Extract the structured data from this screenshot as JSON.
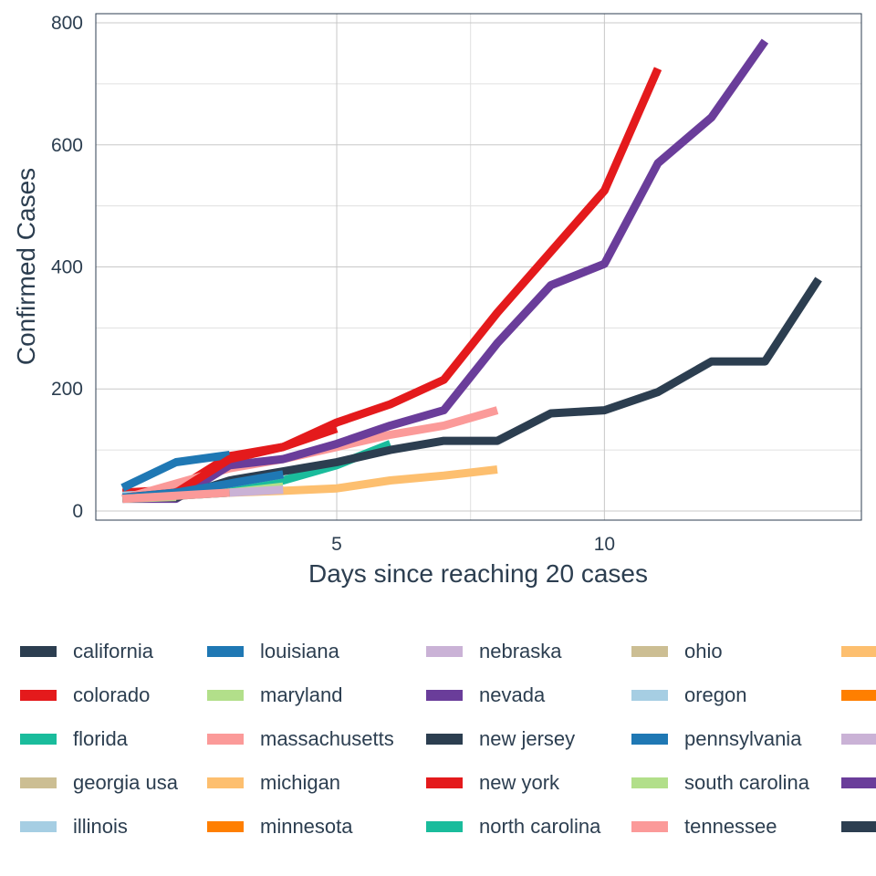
{
  "chart_data": {
    "type": "line",
    "title": "",
    "xlabel": "Days since reaching 20 cases",
    "ylabel": "Confirmed Cases",
    "xlim": [
      0.5,
      14.8
    ],
    "ylim": [
      -15,
      815
    ],
    "xticks": [
      5,
      10
    ],
    "yticks": [
      0,
      200,
      400,
      600,
      800
    ],
    "grid": true,
    "legend_position": "bottom",
    "series": [
      {
        "name": "california",
        "color": "#2c3e50",
        "x": [
          1,
          2
        ],
        "y": [
          28,
          28
        ]
      },
      {
        "name": "colorado",
        "color": "#e41a1c",
        "x": [
          1,
          2,
          3,
          4,
          5
        ],
        "y": [
          30,
          35,
          90,
          105,
          135
        ]
      },
      {
        "name": "florida",
        "color": "#1abc9c",
        "x": [
          1,
          2,
          3,
          4,
          5,
          6
        ],
        "y": [
          21,
          25,
          35,
          50,
          75,
          110
        ]
      },
      {
        "name": "georgia usa",
        "color": "#ccbe93",
        "x": [
          1,
          2,
          3
        ],
        "y": [
          22,
          26,
          30
        ]
      },
      {
        "name": "illinois",
        "color": "#a6cee3",
        "x": [
          1,
          2,
          3,
          4
        ],
        "y": [
          25,
          30,
          45,
          60
        ]
      },
      {
        "name": "louisiana",
        "color": "#1f78b4",
        "x": [
          1,
          2,
          3
        ],
        "y": [
          38,
          80,
          92
        ]
      },
      {
        "name": "maryland",
        "color": "#b2df8a",
        "x": [
          1,
          2,
          3,
          4
        ],
        "y": [
          22,
          26,
          30,
          40
        ]
      },
      {
        "name": "massachusetts",
        "color": "#fb9a99",
        "x": [
          1,
          2,
          3,
          4,
          5,
          6,
          7,
          8
        ],
        "y": [
          20,
          45,
          70,
          85,
          105,
          125,
          140,
          165
        ]
      },
      {
        "name": "michigan",
        "color": "#fdbf6f",
        "x": [
          1,
          2,
          3,
          4,
          5,
          6,
          7,
          8
        ],
        "y": [
          20,
          25,
          30,
          33,
          37,
          50,
          58,
          68
        ]
      },
      {
        "name": "minnesota",
        "color": "#ff7f00",
        "x": [
          1,
          2
        ],
        "y": [
          21,
          25
        ]
      },
      {
        "name": "nebraska",
        "color": "#cab2d6",
        "x": [
          1,
          2,
          3,
          4
        ],
        "y": [
          20,
          25,
          30,
          35
        ]
      },
      {
        "name": "nevada",
        "color": "#6a3d9a",
        "x": [
          1,
          2,
          3,
          4,
          5,
          6,
          7,
          8,
          9,
          10,
          11,
          12,
          13
        ],
        "y": [
          20,
          20,
          75,
          85,
          110,
          140,
          165,
          275,
          370,
          405,
          570,
          645,
          770
        ]
      },
      {
        "name": "new jersey",
        "color": "#2c3e50",
        "x": [
          1,
          2,
          3,
          4,
          5,
          6,
          7,
          8,
          9,
          10,
          11,
          12,
          13,
          14
        ],
        "y": [
          22,
          22,
          50,
          65,
          80,
          100,
          115,
          115,
          160,
          165,
          195,
          245,
          245,
          380
        ]
      },
      {
        "name": "new york",
        "color": "#e41a1c",
        "x": [
          1,
          2,
          3,
          4,
          5,
          6,
          7,
          8,
          9,
          10,
          11
        ],
        "y": [
          22,
          30,
          85,
          105,
          145,
          175,
          215,
          325,
          425,
          525,
          725
        ]
      },
      {
        "name": "north carolina",
        "color": "#1abc9c",
        "x": [
          1,
          2,
          3
        ],
        "y": [
          21,
          25,
          30
        ]
      },
      {
        "name": "ohio",
        "color": "#ccbe93",
        "x": [
          1,
          2
        ],
        "y": [
          20,
          23
        ]
      },
      {
        "name": "oregon",
        "color": "#a6cee3",
        "x": [
          1,
          2
        ],
        "y": [
          22,
          26
        ]
      },
      {
        "name": "pennsylvania",
        "color": "#1f78b4",
        "x": [
          1,
          2,
          3,
          4
        ],
        "y": [
          22,
          30,
          45,
          60
        ]
      },
      {
        "name": "south carolina",
        "color": "#b2df8a",
        "x": [
          1,
          2
        ],
        "y": [
          20,
          24
        ]
      },
      {
        "name": "tennessee",
        "color": "#fb9a99",
        "x": [
          1,
          2,
          3
        ],
        "y": [
          20,
          25,
          30
        ]
      },
      {
        "name": "",
        "color": "#fdbf6f",
        "x": [],
        "y": []
      },
      {
        "name": "",
        "color": "#ff7f00",
        "x": [],
        "y": []
      },
      {
        "name": "",
        "color": "#cab2d6",
        "x": [],
        "y": []
      },
      {
        "name": "",
        "color": "#6a3d9a",
        "x": [],
        "y": []
      },
      {
        "name": "",
        "color": "#2c3e50",
        "x": [],
        "y": []
      }
    ]
  }
}
